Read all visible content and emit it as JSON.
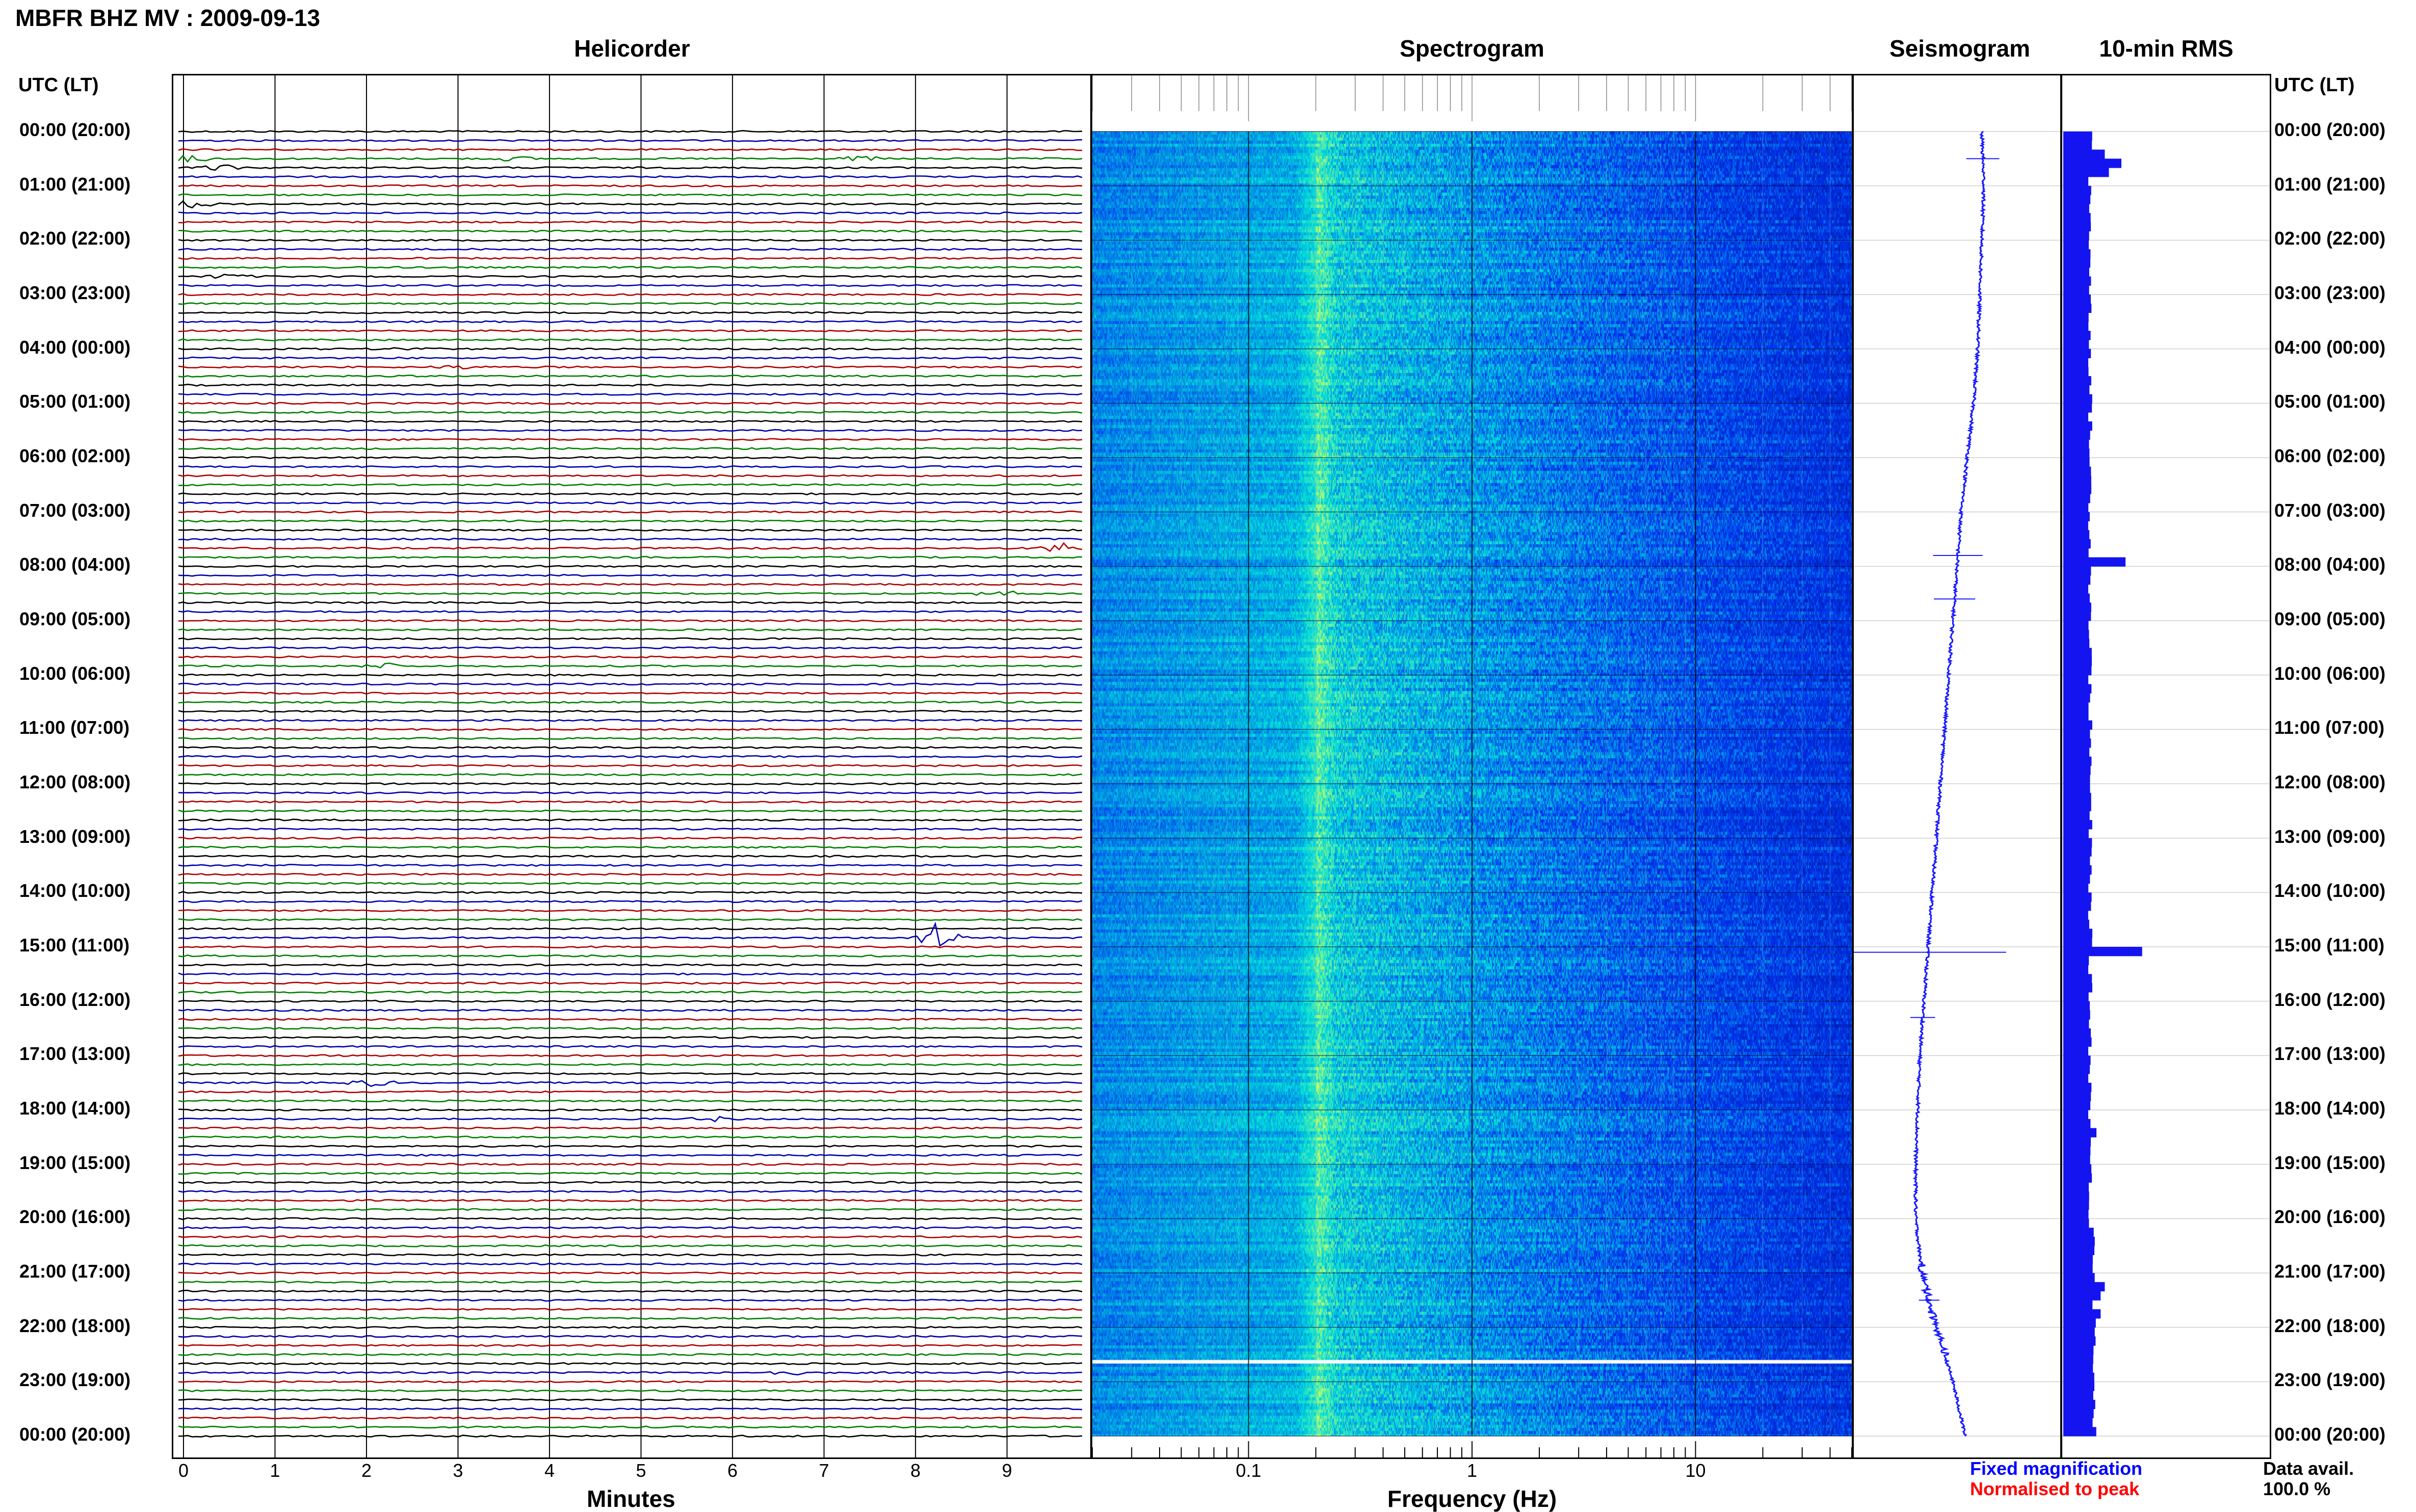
{
  "header": {
    "title": "MBFR BHZ MV : 2009-09-13"
  },
  "panels": {
    "helicorder": "Helicorder",
    "spectrogram": "Spectrogram",
    "seismogram": "Seismogram",
    "rms": "10-min RMS"
  },
  "axis_titles": {
    "left_utc": "UTC (LT)",
    "right_utc": "UTC (LT)",
    "helicorder_x": "Minutes",
    "spectrogram_x": "Frequency (Hz)"
  },
  "time_labels": [
    "00:00 (20:00)",
    "01:00 (21:00)",
    "02:00 (22:00)",
    "03:00 (23:00)",
    "04:00 (00:00)",
    "05:00 (01:00)",
    "06:00 (02:00)",
    "07:00 (03:00)",
    "08:00 (04:00)",
    "09:00 (05:00)",
    "10:00 (06:00)",
    "11:00 (07:00)",
    "12:00 (08:00)",
    "13:00 (09:00)",
    "14:00 (10:00)",
    "15:00 (11:00)",
    "16:00 (12:00)",
    "17:00 (13:00)",
    "18:00 (14:00)",
    "19:00 (15:00)",
    "20:00 (16:00)",
    "21:00 (17:00)",
    "22:00 (18:00)",
    "23:00 (19:00)",
    "00:00 (20:00)"
  ],
  "minute_ticks": [
    "0",
    "1",
    "2",
    "3",
    "4",
    "5",
    "6",
    "7",
    "8",
    "9"
  ],
  "freq_ticks": [
    "0.1",
    "1",
    "10"
  ],
  "legend": {
    "fixed": "Fixed magnification",
    "normalised": "Normalised to peak",
    "fixed_color": "#0000ff",
    "normalised_color": "#ff0000"
  },
  "availability": {
    "label": "Data avail.",
    "value": "100.0 %"
  },
  "colors": {
    "trace_cycle": [
      "#000000",
      "#0000b0",
      "#b00000",
      "#008000"
    ],
    "seismogram": "#1a1aff",
    "rms": "#1414f0"
  },
  "chart_data": [
    {
      "type": "line",
      "name": "helicorder",
      "xlabel": "Minutes",
      "xlim": [
        0,
        10
      ],
      "rows": 144,
      "row_minutes": 10,
      "events": [
        {
          "row": 3,
          "minute": 0.1,
          "amp": 6
        },
        {
          "row": 3,
          "minute": 3.6,
          "amp": 4
        },
        {
          "row": 3,
          "minute": 7.4,
          "amp": 4
        },
        {
          "row": 4,
          "minute": 0.4,
          "amp": 5
        },
        {
          "row": 8,
          "minute": 0.1,
          "amp": 6
        },
        {
          "row": 16,
          "minute": 0.5,
          "amp": 4
        },
        {
          "row": 24,
          "minute": 2.5,
          "amp": 3
        },
        {
          "row": 26,
          "minute": 3.0,
          "amp": 3
        },
        {
          "row": 46,
          "minute": 9.6,
          "amp": 10
        },
        {
          "row": 51,
          "minute": 8.9,
          "amp": 6
        },
        {
          "row": 59,
          "minute": 2.2,
          "amp": 5
        },
        {
          "row": 89,
          "minute": 8.25,
          "amp": 30
        },
        {
          "row": 105,
          "minute": 2.05,
          "amp": 6
        },
        {
          "row": 109,
          "minute": 5.8,
          "amp": 4
        },
        {
          "row": 137,
          "minute": 6.6,
          "amp": 4
        }
      ]
    },
    {
      "type": "heatmap",
      "name": "spectrogram",
      "xlabel": "Frequency (Hz)",
      "xscale": "log",
      "xlim": [
        0.02,
        50
      ],
      "xticks": [
        0.1,
        1,
        10
      ],
      "band_peak_hz": 0.2,
      "gap_row_hour": 22.6
    },
    {
      "type": "line",
      "name": "seismogram",
      "points": [
        [
          0,
          0.62
        ],
        [
          1,
          0.63
        ],
        [
          2,
          0.62
        ],
        [
          3,
          0.61
        ],
        [
          4,
          0.6
        ],
        [
          5,
          0.58
        ],
        [
          6,
          0.55
        ],
        [
          7,
          0.52
        ],
        [
          8,
          0.5
        ],
        [
          9,
          0.48
        ],
        [
          10,
          0.46
        ],
        [
          11,
          0.44
        ],
        [
          12,
          0.42
        ],
        [
          13,
          0.4
        ],
        [
          14,
          0.38
        ],
        [
          15,
          0.36
        ],
        [
          16,
          0.34
        ],
        [
          17,
          0.32
        ],
        [
          18,
          0.31
        ],
        [
          19,
          0.3
        ],
        [
          20,
          0.3
        ],
        [
          21,
          0.33
        ],
        [
          22,
          0.4
        ],
        [
          23,
          0.48
        ],
        [
          24,
          0.54
        ]
      ],
      "spikes": [
        {
          "hour": 0.5,
          "amp": 0.08
        },
        {
          "hour": 7.8,
          "amp": 0.12
        },
        {
          "hour": 8.6,
          "amp": 0.1
        },
        {
          "hour": 15.1,
          "amp": 0.38
        },
        {
          "hour": 16.3,
          "amp": 0.06
        },
        {
          "hour": 21.5,
          "amp": 0.05
        }
      ]
    },
    {
      "type": "bar",
      "name": "10-min RMS",
      "bins": 144,
      "base_level": 0.13,
      "peaks": [
        {
          "bin": 2,
          "value": 0.2
        },
        {
          "bin": 3,
          "value": 0.28
        },
        {
          "bin": 4,
          "value": 0.22
        },
        {
          "bin": 47,
          "value": 0.3
        },
        {
          "bin": 90,
          "value": 0.38
        },
        {
          "bin": 110,
          "value": 0.16
        },
        {
          "bin": 127,
          "value": 0.2
        },
        {
          "bin": 128,
          "value": 0.18
        },
        {
          "bin": 130,
          "value": 0.18
        }
      ]
    }
  ]
}
